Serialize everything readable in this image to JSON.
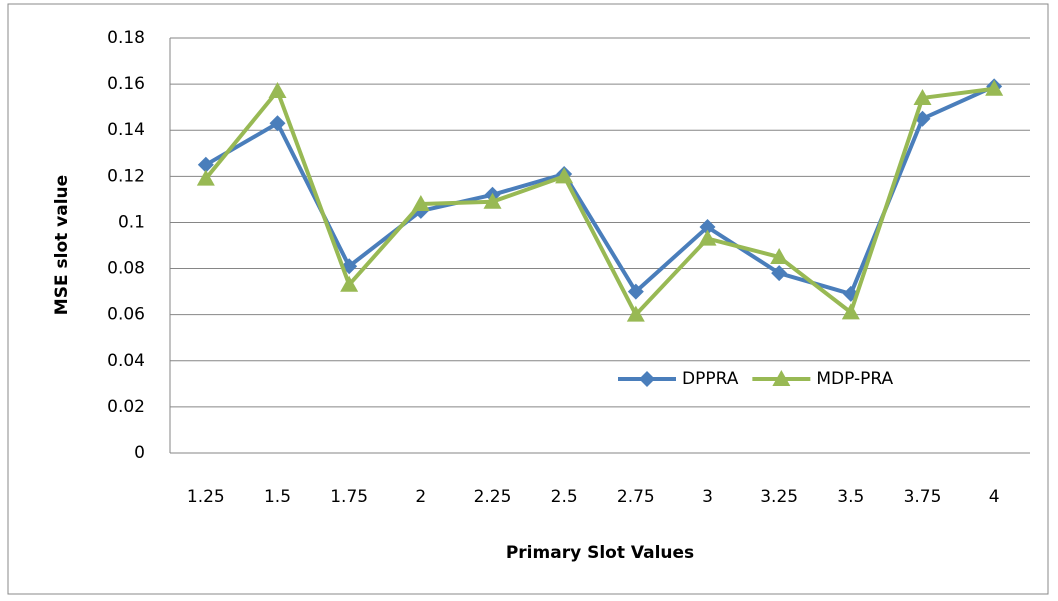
{
  "chart_data": {
    "type": "line",
    "x_label": "Primary Slot Values",
    "y_label": "MSE slot  value",
    "categories": [
      "1.25",
      "1.5",
      "1.75",
      "2",
      "2.25",
      "2.5",
      "2.75",
      "3",
      "3.25",
      "3.5",
      "3.75",
      "4"
    ],
    "series": [
      {
        "name": "DPPRA",
        "color": "#4a7ebb",
        "marker": "diamond",
        "values": [
          0.125,
          0.143,
          0.081,
          0.105,
          0.112,
          0.121,
          0.07,
          0.098,
          0.078,
          0.069,
          0.145,
          0.159
        ]
      },
      {
        "name": "MDP-PRA",
        "color": "#98b954",
        "marker": "triangle",
        "values": [
          0.119,
          0.157,
          0.073,
          0.108,
          0.109,
          0.12,
          0.06,
          0.093,
          0.085,
          0.061,
          0.154,
          0.158
        ]
      }
    ],
    "ylim": [
      0,
      0.18
    ],
    "yticks": [
      0,
      0.02,
      0.04,
      0.06,
      0.08,
      0.1,
      0.12,
      0.14,
      0.16,
      0.18
    ],
    "grid": true
  }
}
